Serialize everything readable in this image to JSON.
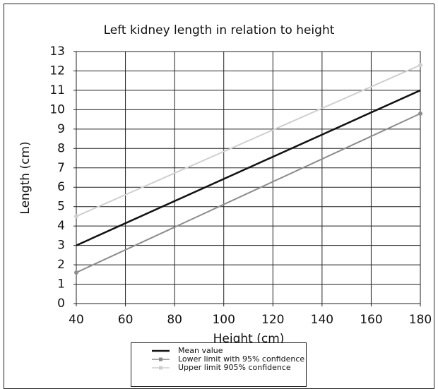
{
  "chart_data": {
    "type": "line",
    "title": "Left kidney length in relation to height",
    "x_label": "Height (cm)",
    "y_label": "Length (cm)",
    "x": [
      40,
      180
    ],
    "series": [
      {
        "name": "Mean value",
        "color": "#111111",
        "values": [
          3.0,
          11.0
        ]
      },
      {
        "name": "Lower limit with 95% confidence",
        "color": "#8c8c8c",
        "values": [
          1.6,
          9.8
        ]
      },
      {
        "name": "Upper limit 905% confidence",
        "color": "#cfcfcf",
        "values": [
          4.5,
          12.3
        ]
      }
    ],
    "xlim": [
      40,
      180
    ],
    "xticks": [
      40,
      60,
      80,
      100,
      120,
      140,
      160,
      180
    ],
    "ylim": [
      0,
      13
    ],
    "yticks": [
      0,
      1,
      2,
      3,
      4,
      5,
      6,
      7,
      8,
      9,
      10,
      11,
      12,
      13
    ],
    "grid": true,
    "legend": "bottom"
  }
}
